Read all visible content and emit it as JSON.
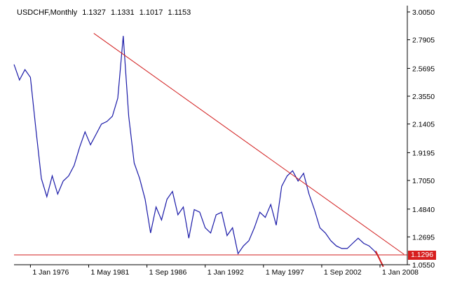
{
  "header": {
    "symbol": "USDCHF,Monthly",
    "open": "1.1327",
    "high": "1.1331",
    "low": "1.1017",
    "close": "1.1153"
  },
  "price_label": "1.1296",
  "colors": {
    "series": "#1a1aa8",
    "trendline": "#d21e1e",
    "axis": "#000000",
    "price_tag_bg": "#d71e1e"
  },
  "chart_data": {
    "type": "line",
    "title": "USDCHF,Monthly",
    "xlabel": "",
    "ylabel": "",
    "x_ticks": [
      "1 Jan 1976",
      "1 May 1981",
      "1 Sep 1986",
      "1 Jan 1992",
      "1 May 1997",
      "1 Sep 2002",
      "1 Jan 2008"
    ],
    "y_ticks": [
      "3.0050",
      "2.7905",
      "2.5695",
      "2.3550",
      "2.1405",
      "1.9195",
      "1.7050",
      "1.4840",
      "1.2695",
      "1.0550"
    ],
    "ylim": [
      1.055,
      3.005
    ],
    "xlim": [
      1974.5,
      2010.5
    ],
    "grid": false,
    "series": [
      {
        "x": [
          1974.5,
          1975.0,
          1975.5,
          1976.0,
          1976.5,
          1977.0,
          1977.5,
          1978.0,
          1978.5,
          1979.0,
          1979.5,
          1980.0,
          1980.5,
          1981.0,
          1981.5,
          1982.0,
          1982.5,
          1983.0,
          1983.5,
          1984.0,
          1984.5,
          1985.0,
          1985.5,
          1986.0,
          1986.5,
          1987.0,
          1987.5,
          1988.0,
          1988.5,
          1989.0,
          1989.5,
          1990.0,
          1990.5,
          1991.0,
          1991.5,
          1992.0,
          1992.5,
          1993.0,
          1993.5,
          1994.0,
          1994.5,
          1995.0,
          1995.5,
          1996.0,
          1996.5,
          1997.0,
          1997.5,
          1998.0,
          1998.5,
          1999.0,
          1999.5,
          2000.0,
          2000.5,
          2001.0,
          2001.5,
          2002.0,
          2002.5,
          2003.0,
          2003.5,
          2004.0,
          2004.5,
          2005.0,
          2005.5,
          2006.0,
          2006.5,
          2007.0,
          2007.5,
          2008.0
        ],
        "values": [
          2.6,
          2.48,
          2.56,
          2.5,
          2.1,
          1.72,
          1.58,
          1.74,
          1.6,
          1.7,
          1.74,
          1.82,
          1.96,
          2.08,
          1.98,
          2.06,
          2.14,
          2.16,
          2.2,
          2.34,
          2.82,
          2.2,
          1.84,
          1.72,
          1.56,
          1.3,
          1.5,
          1.4,
          1.56,
          1.62,
          1.44,
          1.5,
          1.26,
          1.48,
          1.46,
          1.34,
          1.3,
          1.44,
          1.46,
          1.28,
          1.34,
          1.14,
          1.2,
          1.24,
          1.34,
          1.46,
          1.42,
          1.52,
          1.36,
          1.66,
          1.74,
          1.78,
          1.7,
          1.76,
          1.6,
          1.48,
          1.34,
          1.3,
          1.24,
          1.2,
          1.18,
          1.18,
          1.22,
          1.26,
          1.22,
          1.2,
          1.16,
          1.1
        ]
      }
    ],
    "trendlines": [
      {
        "x": [
          1981.8,
          2010.2
        ],
        "values": [
          2.84,
          1.135
        ]
      },
      {
        "x": [
          1974.5,
          2010.5
        ],
        "values": [
          1.131,
          1.131
        ]
      },
      {
        "x": [
          2007.6,
          2008.3
        ],
        "values": [
          1.16,
          1.04
        ]
      }
    ]
  }
}
